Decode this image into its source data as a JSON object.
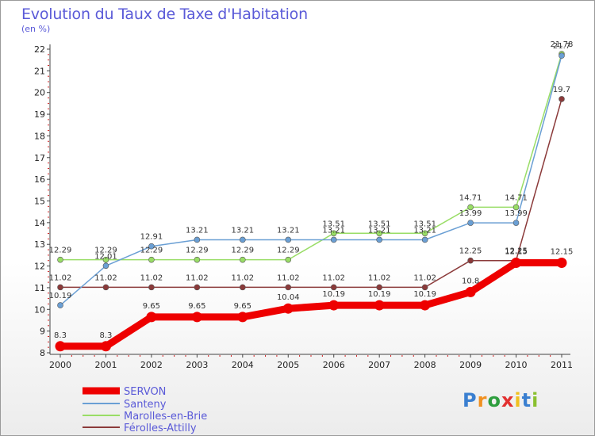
{
  "chart_data": {
    "type": "line",
    "title": "Evolution du Taux de Taxe d'Habitation",
    "ylabel": "(en %)",
    "xlabel": "",
    "ylim": [
      8,
      22
    ],
    "yticks": [
      8,
      9,
      10,
      11,
      12,
      13,
      14,
      15,
      16,
      17,
      18,
      19,
      20,
      21,
      22
    ],
    "categories": [
      "2000",
      "2001",
      "2002",
      "2003",
      "2004",
      "2005",
      "2006",
      "2007",
      "2008",
      "2009",
      "2010",
      "2011"
    ],
    "series": [
      {
        "name": "SERVON",
        "color": "#ee0000",
        "values": [
          8.3,
          8.3,
          9.65,
          9.65,
          9.65,
          10.04,
          10.19,
          10.19,
          10.19,
          10.8,
          12.15,
          12.15
        ],
        "labels": [
          "8.3",
          "8.3",
          "9.65",
          "9.65",
          "9.65",
          "10.04",
          "10.19",
          "10.19",
          "10.19",
          "10.8",
          "12.15",
          "12.15"
        ]
      },
      {
        "name": "Santeny",
        "color": "#6a9fd4",
        "values": [
          10.19,
          12.01,
          12.91,
          13.21,
          13.21,
          13.21,
          13.21,
          13.21,
          13.21,
          13.99,
          13.99,
          21.7
        ],
        "labels": [
          "10.19",
          "12.01",
          "12.91",
          "13.21",
          "13.21",
          "13.21",
          "13.21",
          "13.21",
          "13.21",
          "13.99",
          "13.99",
          "21.7"
        ]
      },
      {
        "name": "Marolles-en-Brie",
        "color": "#99dd66",
        "values": [
          12.29,
          12.29,
          12.29,
          12.29,
          12.29,
          12.29,
          13.51,
          13.51,
          13.51,
          14.71,
          14.71,
          21.78
        ],
        "labels": [
          "12.29",
          "12.29",
          "12.29",
          "12.29",
          "12.29",
          "12.29",
          "13.51",
          "13.51",
          "13.51",
          "14.71",
          "14.71",
          "21.78"
        ]
      },
      {
        "name": "Férolles-Attilly",
        "color": "#8b3a3a",
        "values": [
          11.02,
          11.02,
          11.02,
          11.02,
          11.02,
          11.02,
          11.02,
          11.02,
          11.02,
          12.25,
          12.25,
          19.7
        ],
        "labels": [
          "11.02",
          "11.02",
          "11.02",
          "11.02",
          "11.02",
          "11.02",
          "11.02",
          "11.02",
          "11.02",
          "12.25",
          "12.25",
          "19.7"
        ]
      }
    ]
  },
  "logo": {
    "letters": [
      "P",
      "r",
      "o",
      "x",
      "i",
      "t",
      "i"
    ]
  }
}
